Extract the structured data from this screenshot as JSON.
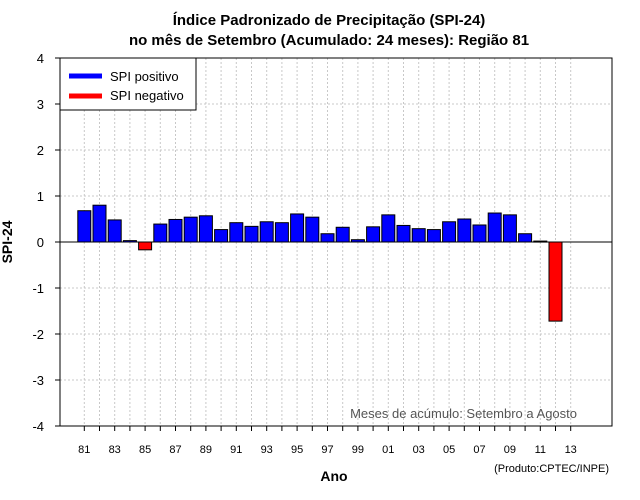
{
  "chart_data": {
    "type": "bar",
    "title": "Índice Padronizado de Precipitação (SPI-24)",
    "subtitle": "no mês de Setembro (Acumulado: 24 meses): Região 81",
    "xlabel": "Ano",
    "ylabel": "SPI-24",
    "ylim": [
      -4,
      4
    ],
    "yticks": [
      "-4",
      "-3",
      "-2",
      "-1",
      "0",
      "1",
      "2",
      "3",
      "4"
    ],
    "grid": true,
    "categories": [
      "81",
      "82",
      "83",
      "84",
      "85",
      "86",
      "87",
      "88",
      "89",
      "90",
      "91",
      "92",
      "93",
      "94",
      "95",
      "96",
      "97",
      "98",
      "99",
      "00",
      "01",
      "02",
      "03",
      "04",
      "05",
      "06",
      "07",
      "08",
      "09",
      "10",
      "11",
      "12",
      "13"
    ],
    "xticklabels": [
      "81",
      "83",
      "85",
      "87",
      "89",
      "91",
      "93",
      "95",
      "97",
      "99",
      "01",
      "03",
      "05",
      "07",
      "09",
      "11",
      "13"
    ],
    "values": [
      0.68,
      0.8,
      0.48,
      0.03,
      -0.17,
      0.39,
      0.49,
      0.54,
      0.57,
      0.27,
      0.42,
      0.34,
      0.44,
      0.42,
      0.61,
      0.54,
      0.18,
      0.32,
      0.05,
      0.33,
      0.59,
      0.36,
      0.29,
      0.27,
      0.44,
      0.5,
      0.37,
      0.63,
      0.59,
      0.18,
      0.02,
      -1.72,
      null
    ],
    "series": [
      {
        "name": "SPI positivo",
        "color": "#0000ff"
      },
      {
        "name": "SPI negativo",
        "color": "#ff0000"
      }
    ],
    "legend_position": "top-left",
    "annotation": "Meses de acúmulo: Setembro a Agosto",
    "footer": "(Produto:CPTEC/INPE)"
  }
}
